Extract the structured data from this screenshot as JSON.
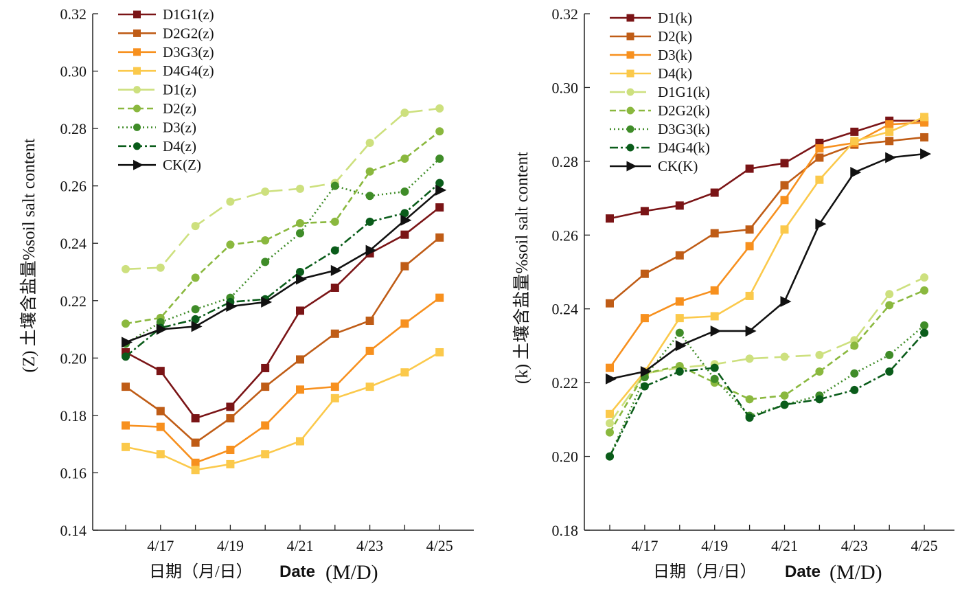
{
  "chart_data": [
    {
      "type": "line",
      "ylabel": "(Z) 土壤含盐量%soil salt content",
      "xlabel": {
        "zh": "日期（月/日）",
        "date": "Date",
        "unit": "(M/D)"
      },
      "ylim": [
        0.14,
        0.32
      ],
      "yticks": [
        "0.14",
        "0.16",
        "0.18",
        "0.20",
        "0.22",
        "0.24",
        "0.26",
        "0.28",
        "0.30",
        "0.32"
      ],
      "x": [
        "4/16",
        "4/17",
        "4/18",
        "4/19",
        "4/20",
        "4/21",
        "4/22",
        "4/23",
        "4/24",
        "4/25"
      ],
      "xtick_labels": [
        "4/17",
        "4/19",
        "4/21",
        "4/23",
        "4/25"
      ],
      "legend_position": "top-left",
      "series": [
        {
          "name": "D1G1(z)",
          "color": "#7a1416",
          "marker": "square",
          "dash": "solid",
          "values": [
            0.202,
            0.1955,
            0.179,
            0.183,
            0.1965,
            0.2165,
            0.2245,
            0.2365,
            0.243,
            0.2525
          ]
        },
        {
          "name": "D2G2(z)",
          "color": "#bf5c16",
          "marker": "square",
          "dash": "solid",
          "values": [
            0.19,
            0.1815,
            0.1705,
            0.179,
            0.19,
            0.1995,
            0.2085,
            0.213,
            0.232,
            0.242
          ]
        },
        {
          "name": "D3G3(z)",
          "color": "#f7901e",
          "marker": "square",
          "dash": "solid",
          "values": [
            0.1765,
            0.176,
            0.1635,
            0.168,
            0.1765,
            0.189,
            0.19,
            0.2025,
            0.212,
            0.221
          ]
        },
        {
          "name": "D4G4(z)",
          "color": "#fbc94b",
          "marker": "square",
          "dash": "solid",
          "values": [
            0.169,
            0.1665,
            0.161,
            0.163,
            0.1665,
            0.171,
            0.186,
            0.19,
            0.195,
            0.202
          ]
        },
        {
          "name": "D1(z)",
          "color": "#cde07e",
          "marker": "circle",
          "dash": "longdash",
          "values": [
            0.231,
            0.2315,
            0.246,
            0.2545,
            0.258,
            0.259,
            0.261,
            0.275,
            0.2855,
            0.287
          ]
        },
        {
          "name": "D2(z)",
          "color": "#8ab83e",
          "marker": "circle",
          "dash": "dash",
          "values": [
            0.212,
            0.214,
            0.228,
            0.2395,
            0.241,
            0.247,
            0.2475,
            0.265,
            0.2695,
            0.279
          ]
        },
        {
          "name": "D3(z)",
          "color": "#3f8c28",
          "marker": "circle",
          "dash": "dot",
          "values": [
            0.205,
            0.2125,
            0.217,
            0.221,
            0.2335,
            0.2435,
            0.26,
            0.2565,
            0.258,
            0.2695
          ]
        },
        {
          "name": "D4(z)",
          "color": "#0a5c1a",
          "marker": "circle",
          "dash": "dashdot",
          "values": [
            0.2005,
            0.2105,
            0.2135,
            0.2195,
            0.2205,
            0.23,
            0.2375,
            0.2475,
            0.2505,
            0.261
          ]
        },
        {
          "name": "CK(Z)",
          "color": "#111111",
          "marker": "triangle",
          "dash": "solid",
          "values": [
            0.2055,
            0.21,
            0.211,
            0.218,
            0.2195,
            0.2275,
            0.2305,
            0.2375,
            0.248,
            0.2585
          ]
        }
      ]
    },
    {
      "type": "line",
      "ylabel": "(k) 土壤含盐量%soil salt content",
      "xlabel": {
        "zh": "日期（月/日）",
        "date": "Date",
        "unit": "(M/D)"
      },
      "ylim": [
        0.18,
        0.32
      ],
      "yticks": [
        "0.18",
        "0.20",
        "0.22",
        "0.24",
        "0.26",
        "0.28",
        "0.30",
        "0.32"
      ],
      "x": [
        "4/16",
        "4/17",
        "4/18",
        "4/19",
        "4/20",
        "4/21",
        "4/22",
        "4/23",
        "4/24",
        "4/25"
      ],
      "xtick_labels": [
        "4/17",
        "4/19",
        "4/21",
        "4/23",
        "4/25"
      ],
      "legend_position": "top-left",
      "series": [
        {
          "name": "D1(k)",
          "color": "#7a1416",
          "marker": "square",
          "dash": "solid",
          "values": [
            0.2645,
            0.2665,
            0.268,
            0.2715,
            0.278,
            0.2795,
            0.285,
            0.288,
            0.291,
            0.291
          ]
        },
        {
          "name": "D2(k)",
          "color": "#bf5c16",
          "marker": "square",
          "dash": "solid",
          "values": [
            0.2415,
            0.2495,
            0.2545,
            0.2605,
            0.2615,
            0.2735,
            0.281,
            0.2845,
            0.2855,
            0.2865
          ]
        },
        {
          "name": "D3(k)",
          "color": "#f7901e",
          "marker": "square",
          "dash": "solid",
          "values": [
            0.224,
            0.2375,
            0.242,
            0.245,
            0.257,
            0.2695,
            0.2835,
            0.285,
            0.29,
            0.2905
          ]
        },
        {
          "name": "D4(k)",
          "color": "#fbc94b",
          "marker": "square",
          "dash": "solid",
          "values": [
            0.2115,
            0.223,
            0.2375,
            0.238,
            0.2435,
            0.2615,
            0.275,
            0.2855,
            0.288,
            0.292
          ]
        },
        {
          "name": "D1G1(k)",
          "color": "#cde07e",
          "marker": "circle",
          "dash": "longdash",
          "values": [
            0.209,
            0.2225,
            0.224,
            0.225,
            0.2265,
            0.227,
            0.2275,
            0.2315,
            0.244,
            0.2485
          ]
        },
        {
          "name": "D2G2(k)",
          "color": "#8ab83e",
          "marker": "circle",
          "dash": "dash",
          "values": [
            0.2065,
            0.2225,
            0.2245,
            0.22,
            0.2155,
            0.2165,
            0.223,
            0.23,
            0.241,
            0.245
          ]
        },
        {
          "name": "D3G3(k)",
          "color": "#3f8c28",
          "marker": "circle",
          "dash": "dot",
          "values": [
            0.2,
            0.2215,
            0.2335,
            0.221,
            0.211,
            0.214,
            0.2165,
            0.2225,
            0.2275,
            0.2355
          ]
        },
        {
          "name": "D4G4(k)",
          "color": "#0a5c1a",
          "marker": "circle",
          "dash": "dashdot",
          "values": [
            0.2,
            0.219,
            0.223,
            0.224,
            0.2105,
            0.214,
            0.2155,
            0.218,
            0.223,
            0.2335
          ]
        },
        {
          "name": "CK(K)",
          "color": "#111111",
          "marker": "triangle",
          "dash": "solid",
          "values": [
            0.221,
            0.223,
            0.23,
            0.234,
            0.234,
            0.242,
            0.263,
            0.277,
            0.281,
            0.282
          ]
        }
      ]
    }
  ]
}
